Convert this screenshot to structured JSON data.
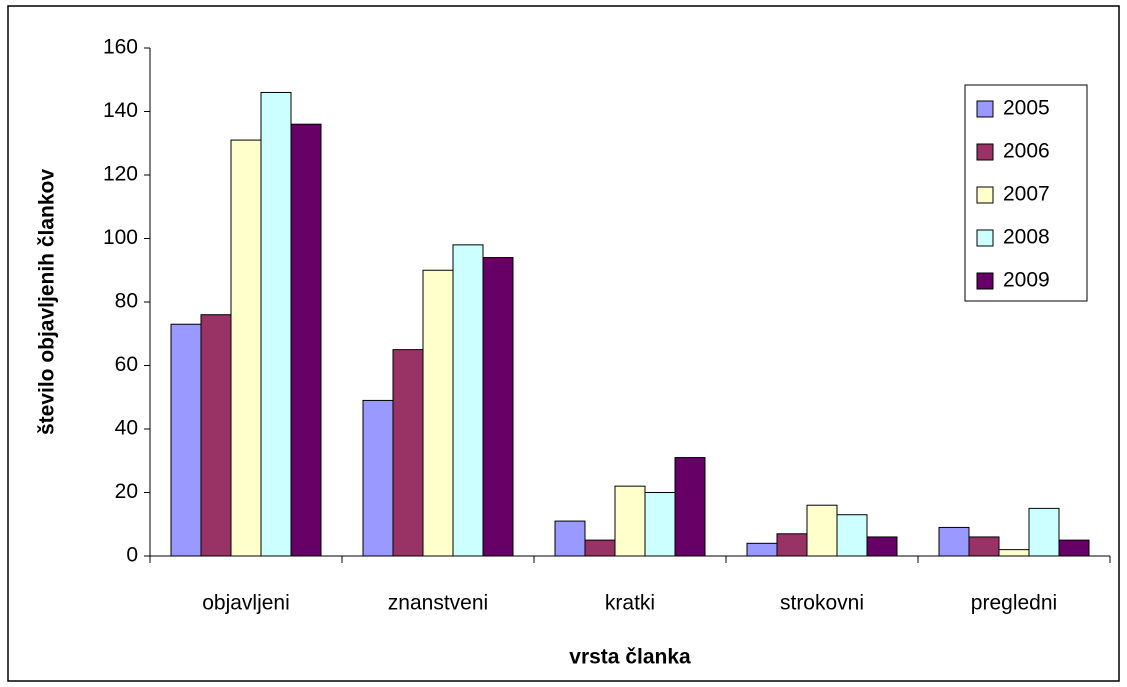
{
  "chart_data": {
    "type": "bar",
    "x_label": "vrsta članka",
    "y_label": "število objavljenih člankov",
    "categories": [
      "objavljeni",
      "znanstveni",
      "kratki",
      "strokovni",
      "pregledni"
    ],
    "series": [
      {
        "name": "2005",
        "color": "#9999ff",
        "values": [
          73,
          49,
          11,
          4,
          9
        ]
      },
      {
        "name": "2006",
        "color": "#993366",
        "values": [
          76,
          65,
          5,
          7,
          6
        ]
      },
      {
        "name": "2007",
        "color": "#ffffcc",
        "values": [
          131,
          90,
          22,
          16,
          2
        ]
      },
      {
        "name": "2008",
        "color": "#ccffff",
        "values": [
          146,
          98,
          20,
          13,
          15
        ]
      },
      {
        "name": "2009",
        "color": "#660066",
        "values": [
          136,
          94,
          31,
          6,
          5
        ]
      }
    ],
    "ylim": [
      0,
      160
    ],
    "yticks": [
      0,
      20,
      40,
      60,
      80,
      100,
      120,
      140,
      160
    ],
    "legend": "top-right"
  }
}
